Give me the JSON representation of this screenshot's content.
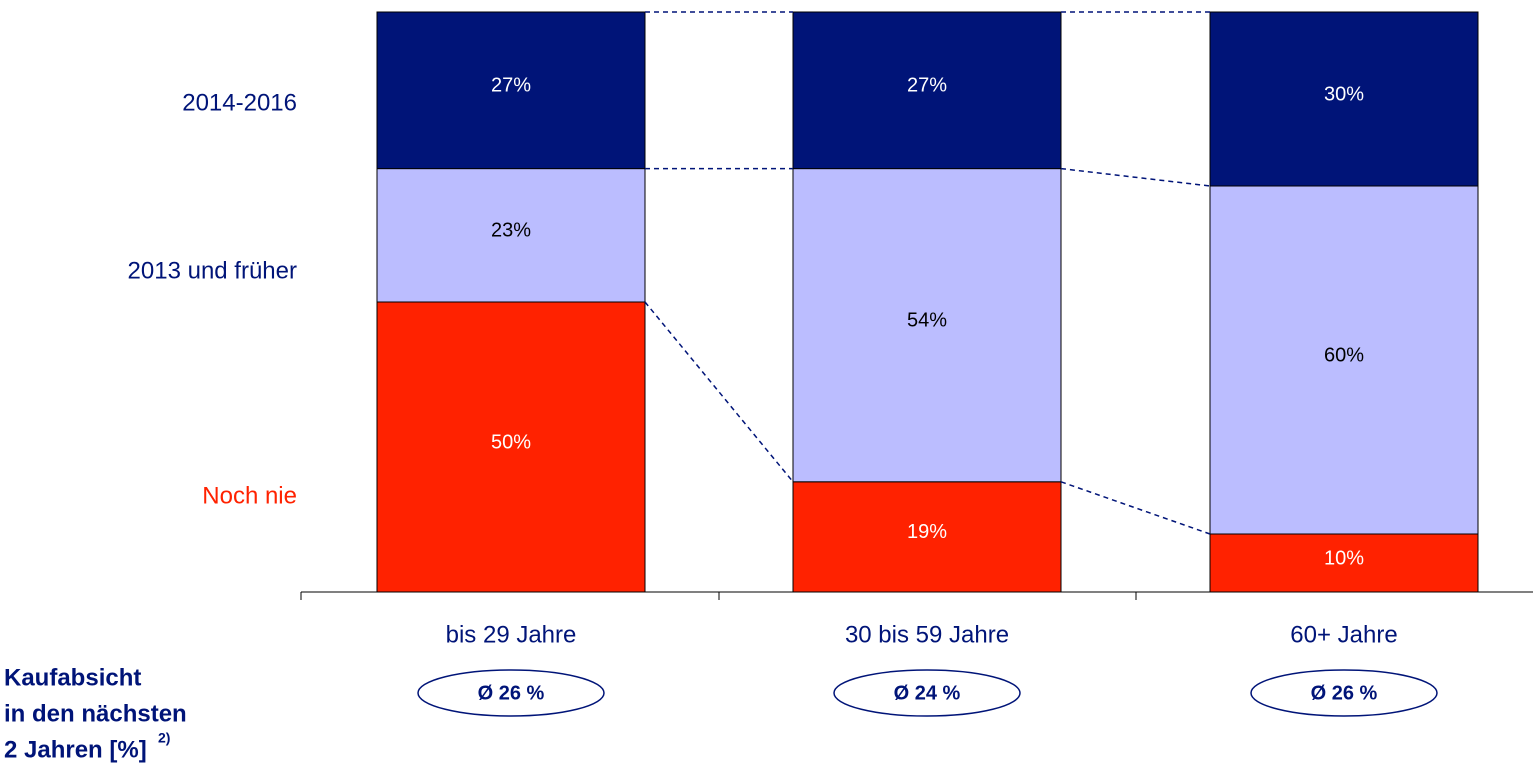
{
  "chart_data": {
    "type": "stacked_bar",
    "categories": [
      "bis 29 Jahre",
      "30 bis 59 Jahre",
      "60+ Jahre"
    ],
    "series": [
      {
        "name": "Noch nie",
        "color": "#ff2200",
        "values": [
          50,
          19,
          10
        ],
        "value_labels": [
          "50%",
          "19%",
          "10%"
        ]
      },
      {
        "name": "2013 und früher",
        "color": "#bbbdff",
        "values": [
          23,
          54,
          60
        ],
        "value_labels": [
          "23%",
          "54%",
          "60%"
        ]
      },
      {
        "name": "2014-2016",
        "color": "#001478",
        "values": [
          27,
          27,
          30
        ],
        "value_labels": [
          "27%",
          "27%",
          "30%"
        ]
      }
    ],
    "ylim": [
      0,
      100
    ],
    "purchase_intent": {
      "label": [
        "Kaufabsicht",
        "in den nächsten",
        "2 Jahren [%]"
      ],
      "footnote_mark": "2)",
      "values": [
        "Ø 26 %",
        "Ø 24 %",
        "Ø 26 %"
      ]
    }
  }
}
